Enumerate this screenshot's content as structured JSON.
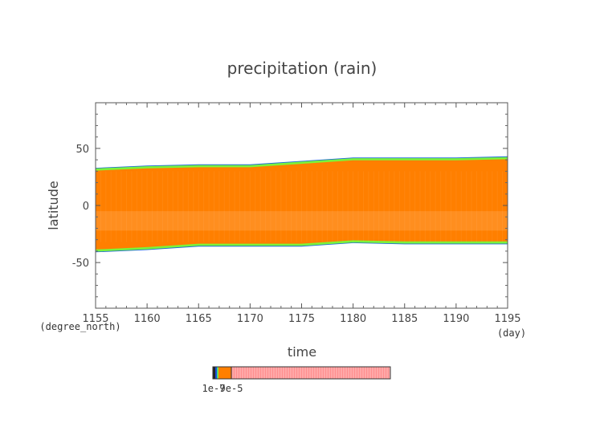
{
  "chart_data": {
    "type": "heatmap",
    "title": "precipitation (rain)",
    "xlabel": "time",
    "ylabel": "latitude",
    "x_unit": "(day)",
    "y_unit": "(degree_north)",
    "xlim": [
      1155,
      1195
    ],
    "ylim": [
      -90,
      90
    ],
    "x_ticks": [
      1155,
      1160,
      1165,
      1170,
      1175,
      1180,
      1185,
      1190,
      1195
    ],
    "y_ticks": [
      50,
      0,
      -50
    ],
    "rain_band": {
      "time": [
        1155,
        1160,
        1165,
        1170,
        1175,
        1180,
        1185,
        1190,
        1195
      ],
      "north_edge": [
        32,
        34,
        35,
        35,
        38,
        41,
        41,
        41,
        42
      ],
      "south_edge": [
        -40,
        -38,
        -35,
        -35,
        -35,
        -32,
        -33,
        -33,
        -33
      ]
    },
    "colorbar": {
      "labels": [
        "1e-7",
        "9e-5"
      ],
      "colors": [
        "#222222",
        "#1f4fd8",
        "#36c9a8",
        "#7cf23a",
        "#ff7f00",
        "#ff8f8f"
      ]
    },
    "colors": {
      "rain_core": "#ff7f00",
      "rain_edge_green": "#7cf23a",
      "rain_edge_blue": "#1f6bd8",
      "high_pink": "#ff9aa2"
    }
  }
}
